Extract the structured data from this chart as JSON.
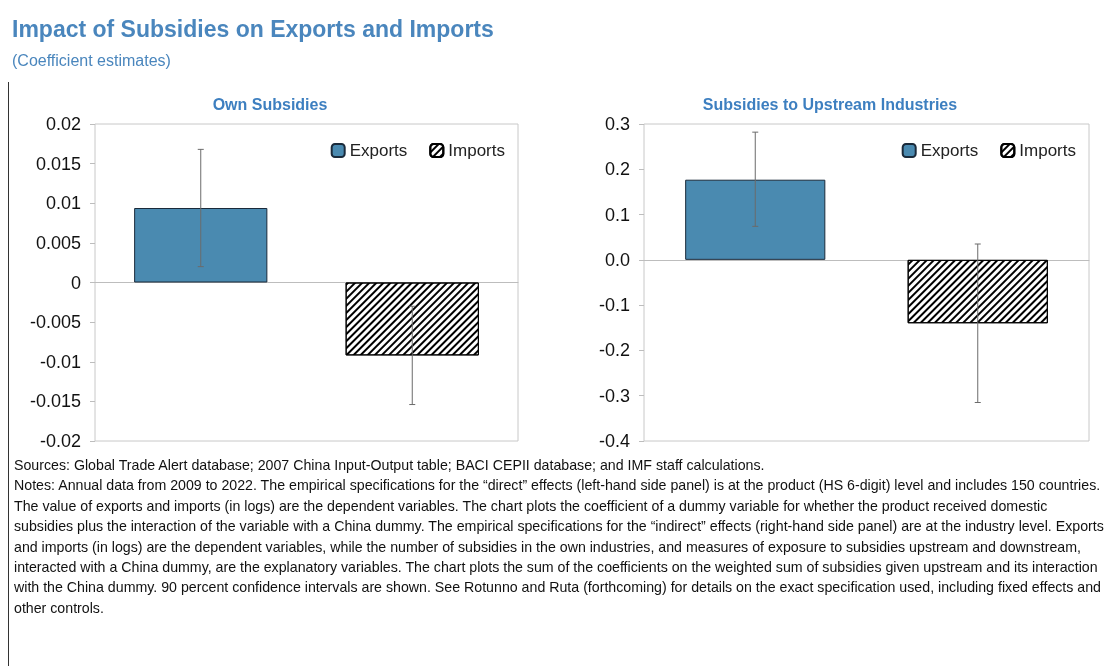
{
  "chart_data": [
    {
      "type": "other",
      "title": "Impact of Subsidies on Exports and Imports",
      "subtitle": "(Coefficient estimates)",
      "annotations": [
        "Sources: Global Trade Alert database; 2007 China Input-Output table; BACI CEPII database; and IMF staff calculations.",
        "Notes: Annual data from 2009 to 2022. The empirical specifications for the “direct” effects (left-hand side panel) is at the product (HS 6-digit) level and includes 150 countries. The value of exports and imports (in logs) are the dependent variables. The chart plots the coefficient of a dummy variable for whether the product received domestic subsidies plus the interaction of the variable with a China dummy. The empirical specifications for the “indirect” effects (right-hand side panel) are at the industry level. Exports and imports (in logs) are the dependent variables, while the number of subsidies in the own industries, and measures of exposure to subsidies upstream and downstream, interacted with a China dummy, are the explanatory variables. The chart plots the sum of the coefficients on the weighted sum of subsidies given upstream and its interaction with the China dummy. 90 percent confidence intervals are shown. See Rotunno and Ruta (forthcoming) for details on the exact specification used, including fixed effects and other controls."
      ]
    },
    {
      "type": "bar",
      "title": "Own Subsidies",
      "categories": [
        null,
        null
      ],
      "legend": "top right",
      "ylim": [
        -0.02,
        0.02
      ],
      "yticks": [
        -0.02,
        -0.015,
        -0.01,
        -0.005,
        0,
        0.005,
        0.01,
        0.015,
        0.02
      ],
      "series": [
        {
          "name": "Exports",
          "color": "#4a8ab0",
          "values": [
            0.0094,
            null
          ],
          "errors": [
            [
              0.002,
              0.0168
            ],
            null
          ]
        },
        {
          "name": "Imports",
          "color": "#000000",
          "values": [
            null,
            -0.0092
          ],
          "errors": [
            null,
            [
              -0.0154,
              -0.003
            ]
          ]
        }
      ]
    },
    {
      "type": "bar",
      "title": "Subsidies to Upstream Industries",
      "categories": [
        null,
        null
      ],
      "legend": "top right",
      "ylim": [
        -0.4,
        0.3
      ],
      "yticks": [
        -0.4,
        -0.3,
        -0.2,
        -0.1,
        {
          "value": 0,
          "label": "0.0"
        },
        0.1,
        0.2,
        0.3
      ],
      "series": [
        {
          "name": "Exports",
          "color": "#4a8ab0",
          "values": [
            0.177,
            null
          ],
          "errors": [
            [
              0.074,
              0.282
            ],
            null
          ]
        },
        {
          "name": "Imports",
          "color": "#000000",
          "values": [
            null,
            -0.14
          ],
          "errors": [
            null,
            [
              -0.315,
              0.035
            ]
          ]
        }
      ]
    }
  ]
}
